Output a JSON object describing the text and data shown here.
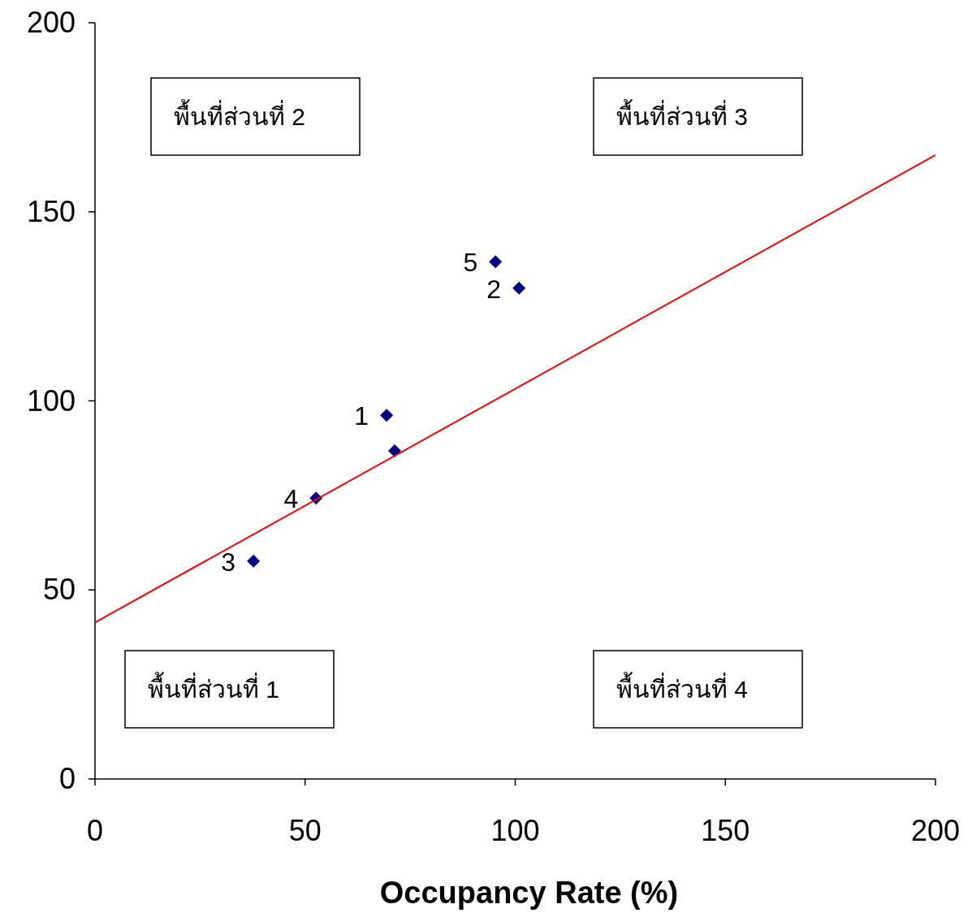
{
  "chart_data": {
    "type": "scatter",
    "xlabel": "Occupancy Rate (%)",
    "xlim": [
      0,
      200
    ],
    "ylim": [
      0,
      200
    ],
    "xticks": [
      0,
      50,
      100,
      150,
      200
    ],
    "yticks": [
      0,
      50,
      100,
      150,
      200
    ],
    "grid": false,
    "series": [
      {
        "color": "#000080",
        "marker": "diamond",
        "x": [
          69.4,
          71.3,
          100.9,
          37.7,
          52.6,
          95.3
        ],
        "values": [
          96.2,
          86.8,
          129.8,
          57.6,
          74.3,
          136.8
        ]
      },
      {
        "type": "line",
        "color": "#ff0000",
        "line_style": "solid",
        "marker": "none",
        "x": [
          0,
          200
        ],
        "values": [
          41.4,
          165.0
        ]
      }
    ],
    "annotations": [
      "พื้นที่ส่วนที่ 2",
      "พื้นที่ส่วนที่ 3",
      "พื้นที่ส่วนที่ 1",
      "พื้นที่ส่วนที่ 4",
      {
        "text": "1",
        "x": 69.4,
        "y": 96.2
      },
      {
        "text": "2",
        "x": 100.9,
        "y": 129.8
      },
      {
        "text": "3",
        "x": 37.7,
        "y": 57.6
      },
      {
        "text": "4",
        "x": 52.6,
        "y": 74.3
      },
      {
        "text": "5",
        "x": 95.3,
        "y": 136.8
      }
    ]
  }
}
